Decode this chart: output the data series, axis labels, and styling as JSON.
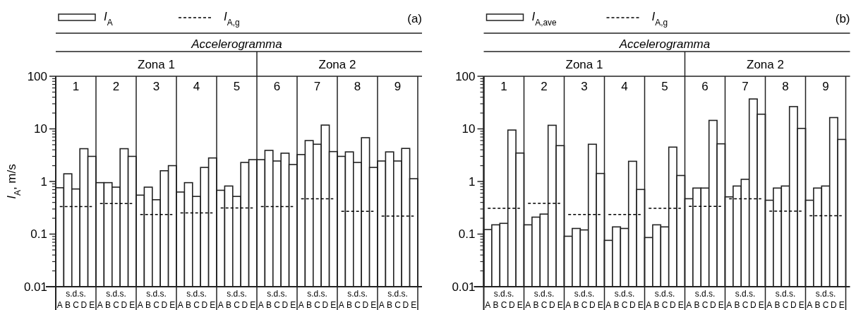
{
  "chart_data": [
    {
      "type": "bar",
      "title": "(a)",
      "ylabel": "I$_{A}$, m/s",
      "log": true,
      "ylim": [
        0.01,
        100
      ],
      "yticks": [
        0.01,
        0.1,
        1,
        10,
        100
      ],
      "grid": false,
      "legend": "top left",
      "categories": [
        "A",
        "B",
        "C",
        "D",
        "E",
        "A",
        "B",
        "C",
        "D",
        "E",
        "A",
        "B",
        "C",
        "D",
        "E",
        "A",
        "B",
        "C",
        "D",
        "E",
        "A",
        "B",
        "C",
        "D",
        "E",
        "A",
        "B",
        "C",
        "D",
        "E",
        "A",
        "B",
        "C",
        "D",
        "E",
        "A",
        "B",
        "C",
        "D",
        "E",
        "A",
        "B",
        "C",
        "D",
        "E"
      ],
      "annotations": [
        "Accelerogramma",
        "Zona 1",
        "Zona 2",
        "1",
        "2",
        "3",
        "4",
        "5",
        "6",
        "7",
        "8",
        "9",
        "s.d.s.",
        "s.d.s.",
        "s.d.s.",
        "s.d.s.",
        "s.d.s.",
        "s.d.s.",
        "s.d.s.",
        "s.d.s.",
        "s.d.s."
      ],
      "series": [
        {
          "name": "I$_{A}$",
          "color": "#ffffff",
          "values": [
            0.76,
            1.4,
            0.72,
            4.2,
            3.0,
            0.95,
            0.95,
            0.78,
            4.2,
            3.0,
            0.55,
            0.78,
            0.45,
            1.6,
            2.0,
            0.63,
            0.95,
            0.52,
            1.85,
            2.8,
            0.68,
            0.82,
            0.52,
            2.3,
            2.6,
            2.6,
            3.9,
            2.45,
            3.45,
            2.1,
            3.25,
            6.0,
            5.1,
            11.8,
            3.7,
            3.0,
            3.65,
            2.3,
            6.8,
            1.85,
            2.45,
            3.65,
            2.45,
            4.25,
            1.13
          ]
        },
        {
          "name": "I$_{A,g}$",
          "type": "line",
          "color": "#000000",
          "line_style": "dashed",
          "values": [
            0.335,
            0.335,
            0.335,
            0.335,
            0.335,
            0.38,
            0.38,
            0.38,
            0.38,
            0.38,
            0.235,
            0.235,
            0.235,
            0.235,
            0.235,
            0.253,
            0.253,
            0.253,
            0.253,
            0.253,
            0.315,
            0.315,
            0.315,
            0.315,
            0.315,
            0.335,
            0.335,
            0.335,
            0.335,
            0.335,
            0.47,
            0.47,
            0.47,
            0.47,
            0.47,
            0.27,
            0.27,
            0.27,
            0.27,
            0.27,
            0.22,
            0.22,
            0.22,
            0.22,
            0.22
          ]
        }
      ]
    },
    {
      "type": "bar",
      "title": "(b)",
      "log": true,
      "ylim": [
        0.01,
        100
      ],
      "yticks": [
        0.01,
        0.1,
        1,
        10,
        100
      ],
      "grid": false,
      "legend": "top left",
      "categories": [
        "A",
        "B",
        "C",
        "D",
        "E",
        "A",
        "B",
        "C",
        "D",
        "E",
        "A",
        "B",
        "C",
        "D",
        "E",
        "A",
        "B",
        "C",
        "D",
        "E",
        "A",
        "B",
        "C",
        "D",
        "E",
        "A",
        "B",
        "C",
        "D",
        "E",
        "A",
        "B",
        "C",
        "D",
        "E",
        "A",
        "B",
        "C",
        "D",
        "E",
        "A",
        "B",
        "C",
        "D",
        "E"
      ],
      "annotations": [
        "Accelerogramma",
        "Zona 1",
        "Zona 2",
        "1",
        "2",
        "3",
        "4",
        "5",
        "6",
        "7",
        "8",
        "9",
        "s.d.s.",
        "s.d.s.",
        "s.d.s.",
        "s.d.s.",
        "s.d.s.",
        "s.d.s.",
        "s.d.s.",
        "s.d.s.",
        "s.d.s."
      ],
      "series": [
        {
          "name": "I$_{A,ave}$",
          "color": "#ffffff",
          "values": [
            0.122,
            0.15,
            0.16,
            9.5,
            3.47,
            0.15,
            0.21,
            0.24,
            11.7,
            4.8,
            0.091,
            0.128,
            0.12,
            5.1,
            1.42,
            0.076,
            0.137,
            0.128,
            2.42,
            0.705,
            0.086,
            0.15,
            0.137,
            4.5,
            1.3,
            0.47,
            0.75,
            0.75,
            14.5,
            5.2,
            0.51,
            0.82,
            1.1,
            37,
            19,
            0.44,
            0.75,
            0.82,
            26.5,
            10.2,
            0.44,
            0.75,
            0.82,
            16.4,
            6.3
          ]
        },
        {
          "name": "I$_{A,g}$",
          "type": "line",
          "color": "#000000",
          "line_style": "dashed",
          "values": [
            0.31,
            0.31,
            0.31,
            0.31,
            0.31,
            0.385,
            0.385,
            0.385,
            0.385,
            0.385,
            0.235,
            0.235,
            0.235,
            0.235,
            0.235,
            0.235,
            0.235,
            0.235,
            0.235,
            0.235,
            0.31,
            0.31,
            0.31,
            0.31,
            0.31,
            0.336,
            0.336,
            0.336,
            0.336,
            0.336,
            0.47,
            0.47,
            0.47,
            0.47,
            0.47,
            0.274,
            0.274,
            0.274,
            0.274,
            0.274,
            0.223,
            0.223,
            0.223,
            0.223,
            0.223
          ]
        }
      ]
    }
  ]
}
